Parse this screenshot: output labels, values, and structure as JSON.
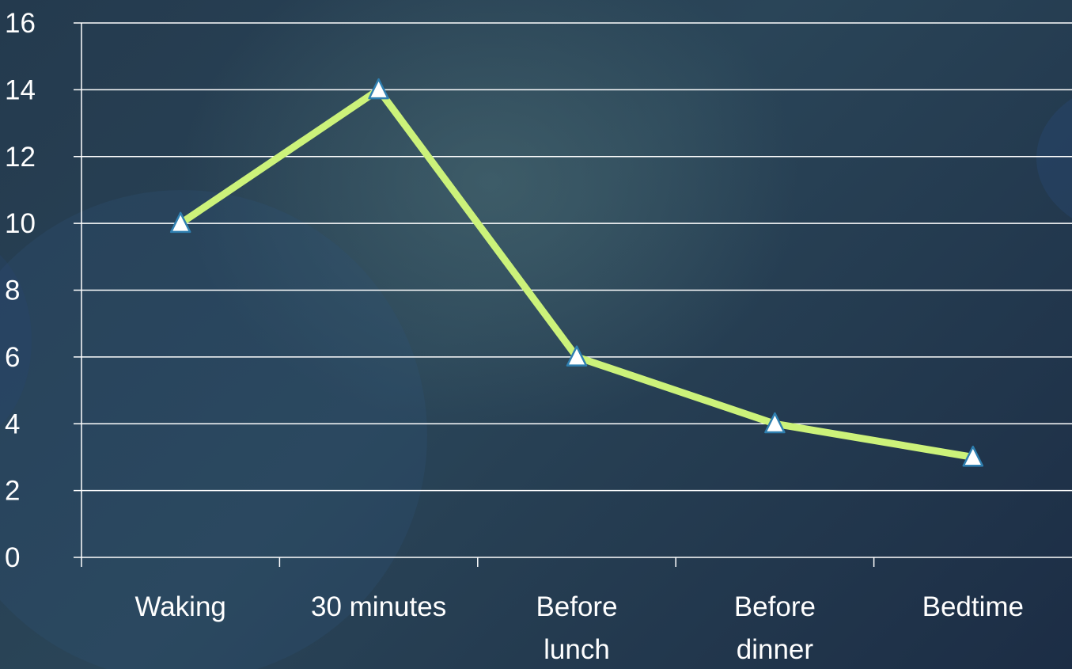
{
  "chart_data": {
    "type": "line",
    "categories": [
      [
        "Waking"
      ],
      [
        "30 minutes"
      ],
      [
        "Before",
        "lunch"
      ],
      [
        "Before",
        "dinner"
      ],
      [
        "Bedtime"
      ]
    ],
    "series": [
      {
        "values": [
          10,
          14,
          6,
          4,
          3
        ]
      }
    ],
    "ylim": [
      0,
      16
    ],
    "yticks": [
      "0",
      "2",
      "4",
      "6",
      "8",
      "10",
      "12",
      "14",
      "16"
    ],
    "grid": true,
    "legend": "none",
    "colors": {
      "line": "#ccf27a",
      "marker_fill": "#ffffff",
      "marker_stroke": "#2f7fb0",
      "axis": "#ffffff",
      "text": "#ffffff"
    }
  }
}
